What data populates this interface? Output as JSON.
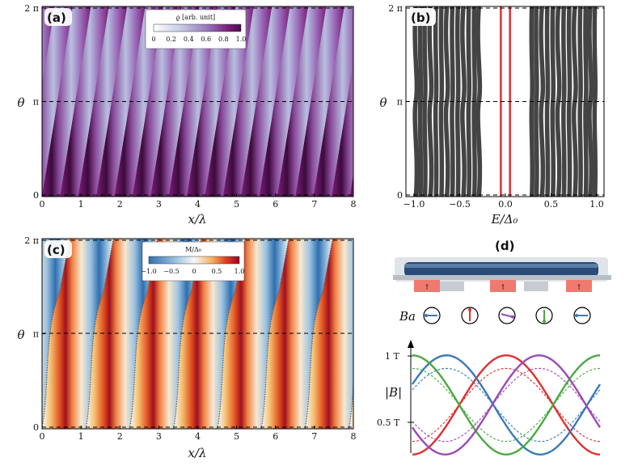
{
  "panels": {
    "a": {
      "label": "(a)",
      "colorbar_title": "ϱ [arb. unit]",
      "colorbar_ticks": [
        "0",
        "0.2",
        "0.4",
        "0.6",
        "0.8",
        "1.0"
      ]
    },
    "b": {
      "label": "(b)"
    },
    "c": {
      "label": "(c)",
      "colorbar_title": "M/Δ₀",
      "colorbar_ticks": [
        "−1.0",
        "−0.5",
        "0",
        "0.5",
        "1.0"
      ]
    },
    "d": {
      "label": "(d)",
      "ba_label": "Ba",
      "B_label": "|B|",
      "tick_1T": "1 T",
      "tick_05T": "0.5 T"
    }
  },
  "axes": {
    "theta_label": "θ",
    "x_label": "x/λ",
    "e_label": "E/Δ₀",
    "y_ticks": [
      "0",
      "π",
      "2 π"
    ],
    "x_ticks": [
      "0",
      "1",
      "2",
      "3",
      "4",
      "5",
      "6",
      "7",
      "8"
    ],
    "e_ticks": [
      "−1.0",
      "−0.5",
      "0.0",
      "0.5",
      "1.0"
    ]
  },
  "colors": {
    "purple": "#7a1e78",
    "red": "#e03030",
    "blue": "#3a7ab8",
    "green": "#4aaa40",
    "violet": "#9a4ab8",
    "gray": "#444444"
  },
  "chart_data": [
    {
      "type": "heatmap",
      "title": "(a)",
      "xlabel": "x/λ",
      "ylabel": "θ",
      "xlim": [
        0,
        8
      ],
      "ylim": [
        0,
        6.283
      ],
      "colorbar": "ϱ [arb. unit]",
      "clim": [
        0,
        1
      ],
      "stripes_count": 17
    },
    {
      "type": "line",
      "title": "(b)",
      "xlabel": "E/Δ₀",
      "ylabel": "θ",
      "xlim": [
        -1.0,
        1.0
      ],
      "ylim": [
        0,
        6.283
      ],
      "red_bands_E": [
        -0.05,
        0.05
      ],
      "gap": [
        -0.25,
        0.25
      ]
    },
    {
      "type": "heatmap",
      "title": "(c)",
      "xlabel": "x/λ",
      "ylabel": "θ",
      "xlim": [
        0,
        8
      ],
      "ylim": [
        0,
        6.283
      ],
      "colorbar": "M/Δ₀",
      "clim": [
        -1.0,
        1.0
      ]
    },
    {
      "type": "line",
      "title": "(d)",
      "ylabel": "|B|",
      "y_ticks": [
        "0.5 T",
        "1 T"
      ],
      "series": [
        {
          "name": "red",
          "color": "#e03030"
        },
        {
          "name": "blue",
          "color": "#3a7ab8"
        },
        {
          "name": "green",
          "color": "#4aaa40"
        },
        {
          "name": "violet",
          "color": "#9a4ab8"
        }
      ]
    }
  ]
}
